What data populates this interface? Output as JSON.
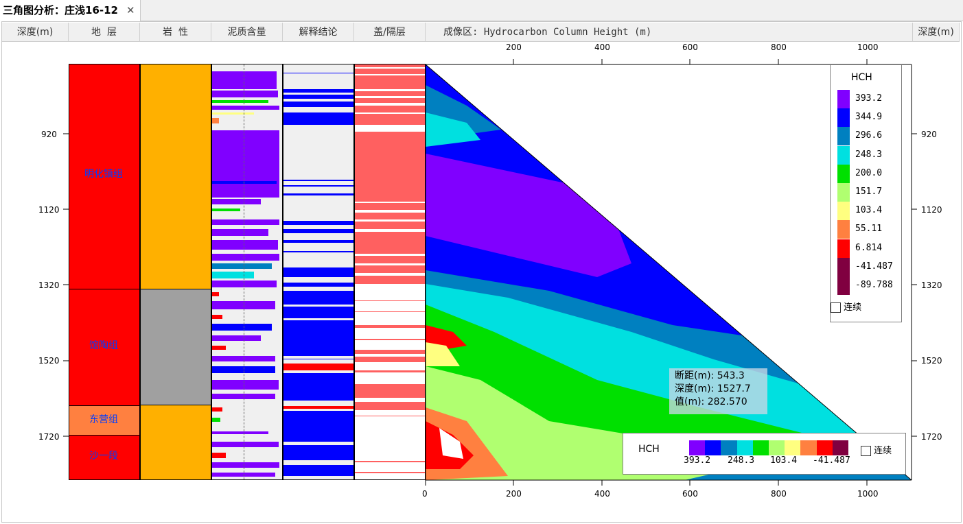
{
  "tab": {
    "title": "三角图分析：庄浅16-12",
    "close": "✕"
  },
  "headers": {
    "depth_left": "深度(m)",
    "formation": "地  层",
    "lithology": "岩  性",
    "shale": "泥质含量",
    "interpretation": "解释结论",
    "seal": "盖/隔层",
    "imaging": "成像区: Hydrocarbon Column Height (m)",
    "depth_right": "深度(m)"
  },
  "depth_ticks": [
    "920",
    "1120",
    "1320",
    "1520",
    "1720"
  ],
  "x_ticks": [
    "0",
    "200",
    "400",
    "600",
    "800",
    "1000"
  ],
  "formations": [
    "明化镇组",
    "馆陶组",
    "东营组",
    "沙一段"
  ],
  "colors": {
    "formation_red": "#ff0000",
    "dongying": "#ff8040",
    "lithology_orange": "#ffb000",
    "lithology_gray": "#a0a0a0",
    "interp_blue": "#0000ff",
    "seal_pink": "#ff6060"
  },
  "readout": {
    "distance": "断距(m): 543.3",
    "depth": "深度(m): 1527.7",
    "value": "值(m): 282.570"
  },
  "legend": {
    "title": "HCH",
    "items": [
      {
        "value": "393.2",
        "color": "#8000ff"
      },
      {
        "value": "344.9",
        "color": "#0000ff"
      },
      {
        "value": "296.6",
        "color": "#0080c0"
      },
      {
        "value": "248.3",
        "color": "#00e0e0"
      },
      {
        "value": "200.0",
        "color": "#00e000"
      },
      {
        "value": "151.7",
        "color": "#b0ff70"
      },
      {
        "value": "103.4",
        "color": "#ffff80"
      },
      {
        "value": "55.11",
        "color": "#ff8040"
      },
      {
        "value": "6.814",
        "color": "#ff0000"
      },
      {
        "value": "-41.487",
        "color": "#800040"
      },
      {
        "value": "-89.788",
        "color": "#800040"
      }
    ],
    "continuous": "连续"
  },
  "hlegend": {
    "title": "HCH",
    "labels": [
      "393.2",
      "248.3",
      "103.4",
      "-41.487"
    ],
    "colors": [
      "#8000ff",
      "#0000ff",
      "#0080c0",
      "#00e0e0",
      "#00e000",
      "#b0ff70",
      "#ffff80",
      "#ff8040",
      "#ff0000",
      "#800040"
    ],
    "continuous": "连续"
  }
}
